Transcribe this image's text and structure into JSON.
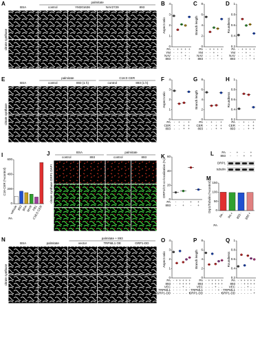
{
  "image_panels": [
    {
      "letter": "A",
      "side_label": "citrate synthase",
      "groups": [
        {
          "label": "BSA",
          "columns": []
        },
        {
          "label": "palmitate",
          "columns": [
            "control",
            "YM201636",
            "NAV2729",
            "893"
          ]
        }
      ]
    },
    {
      "letter": "E",
      "side_label": "citrate synthase",
      "groups": [
        {
          "label": "BSA",
          "columns": []
        },
        {
          "label": "palmitate",
          "columns": [
            "control",
            "893 (1 h)"
          ]
        },
        {
          "label": "C16:0 CER",
          "columns": [
            "control",
            "893 (1 h)"
          ]
        }
      ]
    },
    {
      "letter": "J",
      "side_label": "citrate synthase DRP1 DAPI",
      "groups": [
        {
          "label": "BSA",
          "columns": [
            "control",
            "893"
          ]
        },
        {
          "label": "palmitate",
          "columns": [
            "control",
            "893"
          ]
        }
      ]
    },
    {
      "letter": "N",
      "side_label": "citrate synthase",
      "groups": [
        {
          "label": "BSA",
          "columns": []
        },
        {
          "label": "palmitate",
          "columns": []
        },
        {
          "label": "palmitate + 893",
          "columns": [
            "vector",
            "TRPML1 OE",
            "GRP1-DD"
          ]
        }
      ]
    }
  ],
  "plots": [
    {
      "letter": "B",
      "y_label": "Aspect ratio",
      "ylim": [
        0,
        4
      ],
      "yticks": [
        0,
        1,
        2,
        3,
        4
      ],
      "colors": [
        "#555555",
        "#e03030",
        "#30a030",
        "#c8a020",
        "#2050d0"
      ],
      "means": [
        2.9,
        1.6,
        2.1,
        2.0,
        2.8
      ],
      "factors": [
        {
          "label": "PA",
          "signs": [
            "-",
            "+",
            "+",
            "+",
            "+"
          ]
        },
        {
          "label": "YM",
          "signs": [
            "-",
            "-",
            "+",
            "-",
            "-"
          ]
        },
        {
          "label": "NAV",
          "signs": [
            "-",
            "-",
            "-",
            "+",
            "-"
          ]
        },
        {
          "label": "893",
          "signs": [
            "-",
            "-",
            "-",
            "-",
            "+"
          ]
        }
      ]
    },
    {
      "letter": "C",
      "y_label": "Branch length",
      "ylim": [
        0,
        8
      ],
      "yticks": [
        0,
        2,
        4,
        6,
        8
      ],
      "colors": [
        "#555555",
        "#e03030",
        "#30a030",
        "#c8a020",
        "#2050d0"
      ],
      "means": [
        5.6,
        2.8,
        3.6,
        3.4,
        5.2
      ],
      "factors": [
        {
          "label": "PA",
          "signs": [
            "-",
            "+",
            "+",
            "+",
            "+"
          ]
        },
        {
          "label": "YM",
          "signs": [
            "-",
            "-",
            "+",
            "-",
            "-"
          ]
        },
        {
          "label": "NAV",
          "signs": [
            "-",
            "-",
            "-",
            "+",
            "-"
          ]
        },
        {
          "label": "893",
          "signs": [
            "-",
            "-",
            "-",
            "-",
            "+"
          ]
        }
      ]
    },
    {
      "letter": "D",
      "y_label": "Roundness",
      "ylim": [
        0.2,
        1.0
      ],
      "yticks": [
        0.2,
        0.4,
        0.6,
        0.8,
        1.0
      ],
      "colors": [
        "#555555",
        "#e03030",
        "#30a030",
        "#c8a020",
        "#2050d0"
      ],
      "means": [
        0.42,
        0.72,
        0.6,
        0.62,
        0.45
      ],
      "factors": [
        {
          "label": "PA",
          "signs": [
            "-",
            "+",
            "+",
            "+",
            "+"
          ]
        },
        {
          "label": "YM",
          "signs": [
            "-",
            "-",
            "+",
            "-",
            "-"
          ]
        },
        {
          "label": "NAV",
          "signs": [
            "-",
            "-",
            "-",
            "+",
            "-"
          ]
        },
        {
          "label": "893",
          "signs": [
            "-",
            "-",
            "-",
            "-",
            "+"
          ]
        }
      ]
    },
    {
      "letter": "F",
      "y_label": "Aspect ratio",
      "ylim": [
        0,
        4
      ],
      "yticks": [
        0,
        1,
        2,
        3,
        4
      ],
      "colors": [
        "#555555",
        "#e03030",
        "#e03030",
        "#2050d0"
      ],
      "means": [
        2.9,
        1.6,
        1.7,
        2.8
      ],
      "factors": [
        {
          "label": "PA",
          "signs": [
            "-",
            "+",
            "-",
            "+"
          ]
        },
        {
          "label": "CER",
          "signs": [
            "-",
            "-",
            "+",
            "+"
          ]
        },
        {
          "label": "893",
          "signs": [
            "-",
            "-",
            "+",
            "+"
          ]
        }
      ]
    },
    {
      "letter": "G",
      "y_label": "Branch length",
      "ylim": [
        0,
        8
      ],
      "yticks": [
        0,
        2,
        4,
        6,
        8
      ],
      "colors": [
        "#555555",
        "#e03030",
        "#e03030",
        "#2050d0"
      ],
      "means": [
        5.5,
        2.8,
        2.9,
        5.4
      ],
      "factors": [
        {
          "label": "PA",
          "signs": [
            "-",
            "+",
            "-",
            "+"
          ]
        },
        {
          "label": "CER",
          "signs": [
            "-",
            "-",
            "+",
            "+"
          ]
        },
        {
          "label": "893",
          "signs": [
            "-",
            "-",
            "+",
            "+"
          ]
        }
      ]
    },
    {
      "letter": "H",
      "y_label": "Roundness",
      "ylim": [
        0.2,
        1.0
      ],
      "yticks": [
        0.2,
        0.4,
        0.6,
        0.8,
        1.0
      ],
      "colors": [
        "#555555",
        "#e03030",
        "#e03030",
        "#2050d0"
      ],
      "means": [
        0.42,
        0.72,
        0.7,
        0.45
      ],
      "factors": [
        {
          "label": "PA",
          "signs": [
            "-",
            "+",
            "-",
            "+"
          ]
        },
        {
          "label": "CER",
          "signs": [
            "-",
            "-",
            "+",
            "+"
          ]
        },
        {
          "label": "893",
          "signs": [
            "-",
            "-",
            "+",
            "+"
          ]
        }
      ]
    },
    {
      "letter": "K",
      "y_label": "DRP1/CS co-localization (%)",
      "ylim": [
        0,
        60
      ],
      "yticks": [
        0,
        20,
        40,
        60
      ],
      "colors": [
        "#555555",
        "#30a030",
        "#e03030",
        "#2050d0"
      ],
      "means": [
        10,
        12,
        45,
        14
      ],
      "factors": [
        {
          "label": "PA",
          "signs": [
            "-",
            "-",
            "+",
            "+"
          ]
        },
        {
          "label": "893",
          "signs": [
            "-",
            "+",
            "-",
            "+"
          ]
        }
      ]
    },
    {
      "letter": "O",
      "y_label": "Aspect ratio",
      "ylim": [
        0,
        4
      ],
      "yticks": [
        0,
        1,
        2,
        3,
        4
      ],
      "colors": [
        "#555555",
        "#e03030",
        "#2050d0",
        "#e03030",
        "#a040a0",
        "#d04090"
      ],
      "means": [
        2.8,
        1.6,
        2.9,
        1.7,
        2.0,
        2.2
      ],
      "factors": [
        {
          "label": "PA",
          "signs": [
            "-",
            "+",
            "+",
            "+",
            "+",
            "+"
          ]
        },
        {
          "label": "893",
          "signs": [
            "-",
            "-",
            "+",
            "+",
            "+",
            "+"
          ]
        },
        {
          "label": "VEC",
          "signs": [
            "-",
            "-",
            "-",
            "+",
            "-",
            "-"
          ]
        },
        {
          "label": "TRPML1",
          "signs": [
            "-",
            "-",
            "-",
            "-",
            "+",
            "-"
          ]
        },
        {
          "label": "GRP1-DD",
          "signs": [
            "-",
            "-",
            "-",
            "-",
            "-",
            "+"
          ]
        }
      ]
    },
    {
      "letter": "P",
      "y_label": "Branch length",
      "ylim": [
        0,
        8
      ],
      "yticks": [
        0,
        2,
        4,
        6,
        8
      ],
      "colors": [
        "#555555",
        "#e03030",
        "#2050d0",
        "#e03030",
        "#a040a0",
        "#d04090"
      ],
      "means": [
        5.4,
        2.9,
        5.2,
        3.0,
        3.6,
        3.8
      ],
      "factors": [
        {
          "label": "PA",
          "signs": [
            "-",
            "+",
            "+",
            "+",
            "+",
            "+"
          ]
        },
        {
          "label": "893",
          "signs": [
            "-",
            "-",
            "+",
            "+",
            "+",
            "+"
          ]
        },
        {
          "label": "VEC",
          "signs": [
            "-",
            "-",
            "-",
            "+",
            "-",
            "-"
          ]
        },
        {
          "label": "TRPML1",
          "signs": [
            "-",
            "-",
            "-",
            "-",
            "+",
            "-"
          ]
        },
        {
          "label": "GRP1-DD",
          "signs": [
            "-",
            "-",
            "-",
            "-",
            "-",
            "+"
          ]
        }
      ]
    },
    {
      "letter": "Q",
      "y_label": "Roundness",
      "ylim": [
        0.2,
        1.0
      ],
      "yticks": [
        0.2,
        0.4,
        0.6,
        0.8,
        1.0
      ],
      "colors": [
        "#555555",
        "#e03030",
        "#2050d0",
        "#e03030",
        "#a040a0",
        "#d04090"
      ],
      "means": [
        0.45,
        0.7,
        0.47,
        0.68,
        0.62,
        0.6
      ],
      "factors": [
        {
          "label": "PA",
          "signs": [
            "-",
            "+",
            "+",
            "+",
            "+",
            "+"
          ]
        },
        {
          "label": "893",
          "signs": [
            "-",
            "-",
            "+",
            "+",
            "+",
            "+"
          ]
        },
        {
          "label": "VEC",
          "signs": [
            "-",
            "-",
            "-",
            "+",
            "-",
            "-"
          ]
        },
        {
          "label": "TRPML1",
          "signs": [
            "-",
            "-",
            "-",
            "-",
            "+",
            "-"
          ]
        },
        {
          "label": "GRP1-DD",
          "signs": [
            "-",
            "-",
            "-",
            "-",
            "-",
            "+"
          ]
        }
      ]
    }
  ],
  "bar_panels": [
    {
      "letter": "I",
      "y_label": "C16-CER (%control)",
      "ylim": [
        0,
        600
      ],
      "yticks": [
        0,
        200,
        400,
        600
      ],
      "categories": [
        "vehicle",
        "893",
        "BFA",
        "MYR",
        "FB1",
        "C16:0 CER"
      ],
      "colors": [
        "#ffffff",
        "#2050d0",
        "#c8a020",
        "#30a030",
        "#a040a0",
        "#e03030"
      ],
      "values": [
        100,
        170,
        150,
        130,
        90,
        560
      ],
      "factor": "PA"
    },
    {
      "letter": "M",
      "y_label": "Drp1/Tubulin (%control)",
      "ylim": [
        0,
        150
      ],
      "yticks": [
        0,
        50,
        100,
        150
      ],
      "categories": [
        "PA -",
        "PA +",
        "893 -",
        "893 +"
      ],
      "colors": [
        "#e03030",
        "#30a030",
        "#2050d0",
        "#e08080"
      ],
      "values": [
        100,
        98,
        97,
        99
      ],
      "factor": "PA"
    }
  ],
  "blot": {
    "letter": "L",
    "rows": [
      "PA",
      "893"
    ],
    "signs": [
      [
        "-",
        "+",
        "-",
        "+"
      ],
      [
        "-",
        "-",
        "+",
        "+"
      ]
    ],
    "bands": [
      "DRP1",
      "tubulin"
    ]
  }
}
